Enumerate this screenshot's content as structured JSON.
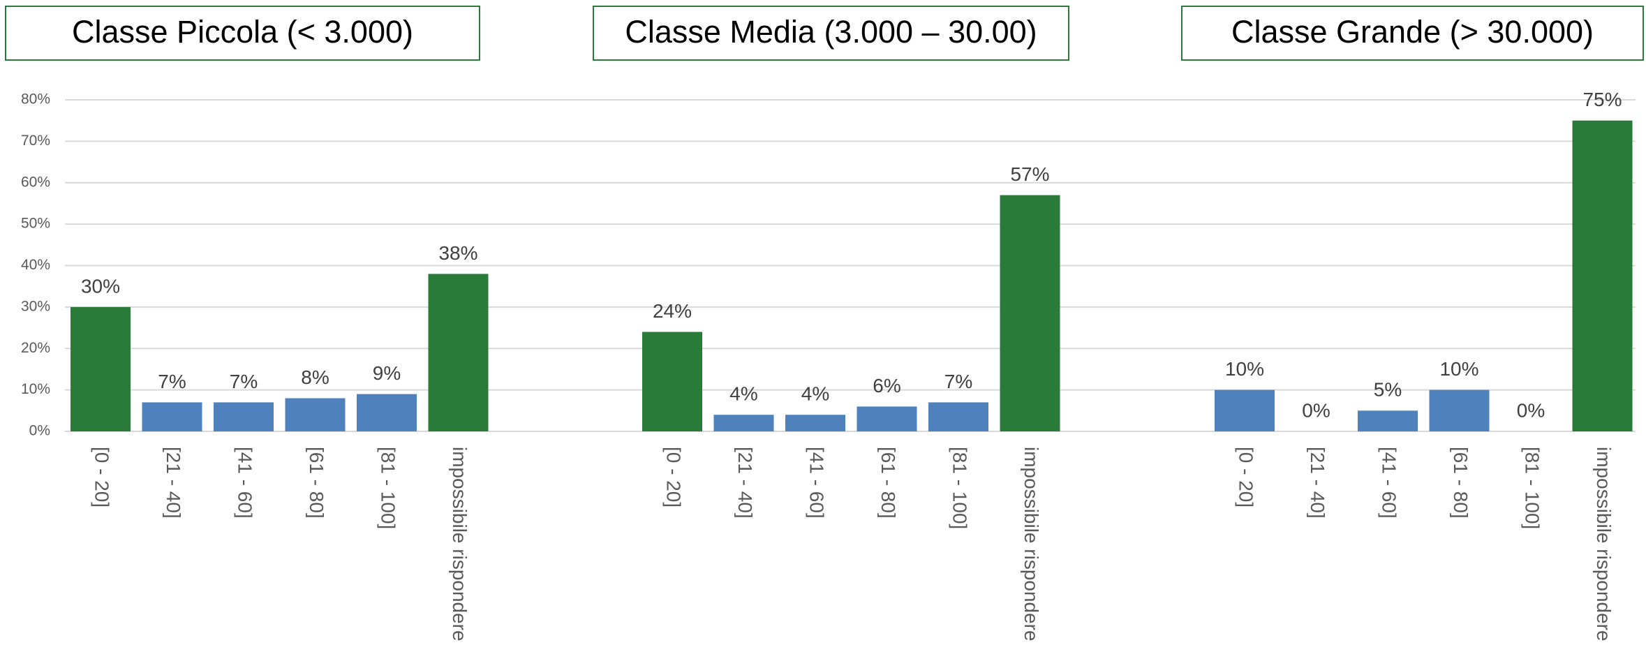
{
  "chart_data": {
    "type": "bar",
    "ylim": [
      0,
      80
    ],
    "yticks": [
      {
        "value": 0,
        "label": "0%"
      },
      {
        "value": 10,
        "label": "10%"
      },
      {
        "value": 20,
        "label": "20%"
      },
      {
        "value": 30,
        "label": "30%"
      },
      {
        "value": 40,
        "label": "40%"
      },
      {
        "value": 50,
        "label": "50%"
      },
      {
        "value": 60,
        "label": "60%"
      },
      {
        "value": 70,
        "label": "70%"
      },
      {
        "value": 80,
        "label": "80%"
      }
    ],
    "grid": true,
    "groups": [
      {
        "title": "Classe Piccola (< 3.000)",
        "categories": [
          "[0 - 20]",
          "[21 - 40]",
          "[41 - 60]",
          "[61 - 80]",
          "[81 - 100]",
          "impossibile rispondere"
        ],
        "values": [
          30,
          7,
          7,
          8,
          9,
          38
        ],
        "value_labels": [
          "30%",
          "7%",
          "7%",
          "8%",
          "9%",
          "38%"
        ],
        "colors": [
          "#2a7b3a",
          "#4f81bd",
          "#4f81bd",
          "#4f81bd",
          "#4f81bd",
          "#2a7b3a"
        ]
      },
      {
        "title": "Classe Media (3.000 – 30.00)",
        "categories": [
          "[0 - 20]",
          "[21 - 40]",
          "[41 - 60]",
          "[61 - 80]",
          "[81 - 100]",
          "impossibile rispondere"
        ],
        "values": [
          24,
          4,
          4,
          6,
          7,
          57
        ],
        "value_labels": [
          "24%",
          "4%",
          "4%",
          "6%",
          "7%",
          "57%"
        ],
        "colors": [
          "#2a7b3a",
          "#4f81bd",
          "#4f81bd",
          "#4f81bd",
          "#4f81bd",
          "#2a7b3a"
        ]
      },
      {
        "title": "Classe Grande (> 30.000)",
        "categories": [
          "[0 - 20]",
          "[21 - 40]",
          "[41 - 60]",
          "[61 - 80]",
          "[81 - 100]",
          "impossibile rispondere"
        ],
        "values": [
          10,
          0,
          5,
          10,
          0,
          75
        ],
        "value_labels": [
          "10%",
          "0%",
          "5%",
          "10%",
          "0%",
          "75%"
        ],
        "colors": [
          "#4f81bd",
          "#4f81bd",
          "#4f81bd",
          "#4f81bd",
          "#4f81bd",
          "#2a7b3a"
        ]
      }
    ]
  }
}
